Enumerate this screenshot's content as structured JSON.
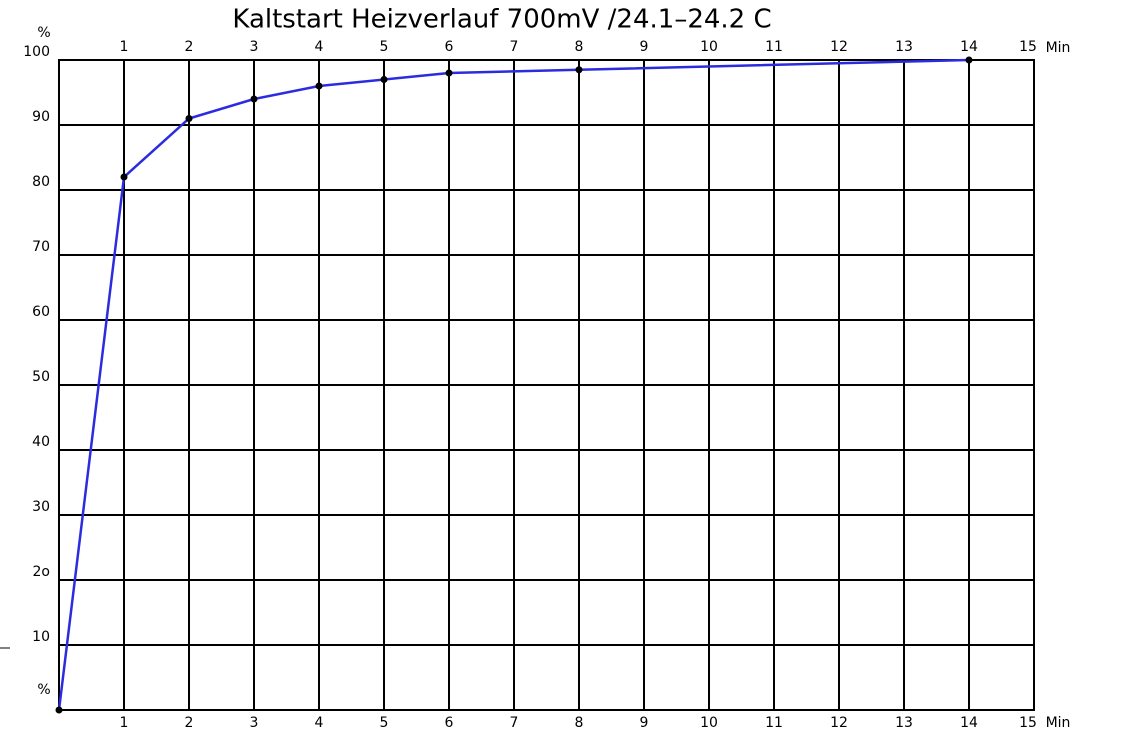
{
  "chart_data": {
    "type": "line",
    "title": "Kaltstart Heizverlauf 700mV /24.1–24.2 C",
    "x_label": "Min",
    "y_label": "%",
    "x": [
      0,
      1,
      2,
      3,
      4,
      5,
      6,
      8,
      14
    ],
    "series": [
      {
        "color": "#2b2be0",
        "values": [
          0,
          82,
          91,
          94,
          96,
          97,
          98,
          98.5,
          100
        ]
      }
    ],
    "xlim": [
      0,
      15
    ],
    "ylim": [
      0,
      100
    ],
    "xticks": [
      1,
      2,
      3,
      4,
      5,
      6,
      7,
      8,
      9,
      10,
      11,
      12,
      13,
      14,
      15
    ],
    "yticks": [
      10,
      {
        "value": 20,
        "label": "2o"
      },
      30,
      40,
      50,
      60,
      70,
      80,
      90,
      100
    ],
    "grid": true,
    "marker_color": "#000000"
  }
}
